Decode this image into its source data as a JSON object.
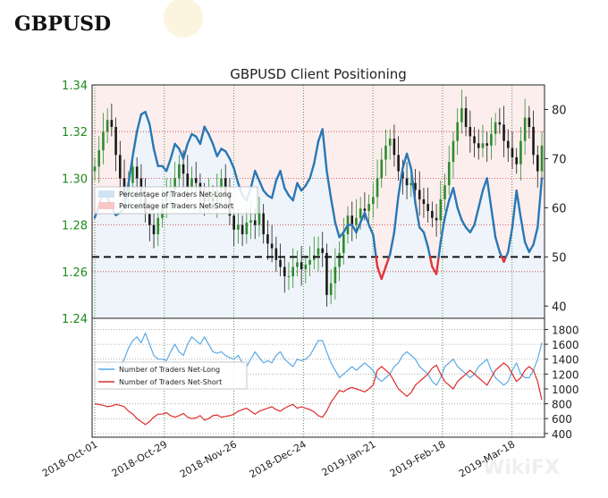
{
  "page_title": "GBPUSD",
  "watermark": "WikiFX",
  "colors": {
    "price_up": "#2e8b2e",
    "price_down": "#1a1a1a",
    "pct_long": "#2a77b4",
    "pct_short": "#e0353a",
    "num_long": "#5aa9e6",
    "num_short": "#dd2b2b",
    "band_long": "#eef4fa",
    "band_short": "#fdeeee",
    "axis_green": "#1f8a1f"
  },
  "chart_data": [
    {
      "type": "candlestick+line",
      "title": "GBPUSD Client Positioning",
      "x_start_date": "2018-10-01",
      "num_days": 181,
      "left_axis": {
        "ylim": [
          1.24,
          1.34
        ],
        "ticks": [
          "1.24",
          "1.26",
          "1.28",
          "1.30",
          "1.32",
          "1.34"
        ]
      },
      "right_axis": {
        "ylim": [
          37.5,
          85
        ],
        "ticks": [
          "40",
          "50",
          "60",
          "70",
          "80"
        ],
        "reference_line": 50
      },
      "price_close": [
        1.305,
        1.312,
        1.32,
        1.325,
        1.322,
        1.31,
        1.3,
        1.292,
        1.298,
        1.305,
        1.3,
        1.292,
        1.285,
        1.28,
        1.276,
        1.283,
        1.29,
        1.292,
        1.295,
        1.3,
        1.306,
        1.302,
        1.296,
        1.3,
        1.298,
        1.292,
        1.29,
        1.292,
        1.29,
        1.295,
        1.3,
        1.292,
        1.284,
        1.278,
        1.28,
        1.276,
        1.281,
        1.282,
        1.28,
        1.285,
        1.276,
        1.272,
        1.27,
        1.265,
        1.262,
        1.258,
        1.258,
        1.262,
        1.264,
        1.261,
        1.263,
        1.265,
        1.267,
        1.27,
        1.268,
        1.25,
        1.255,
        1.262,
        1.268,
        1.276,
        1.284,
        1.28,
        1.283,
        1.287,
        1.286,
        1.289,
        1.292,
        1.3,
        1.308,
        1.314,
        1.317,
        1.31,
        1.303,
        1.3,
        1.297,
        1.298,
        1.295,
        1.291,
        1.289,
        1.286,
        1.283,
        1.282,
        1.291,
        1.297,
        1.307,
        1.316,
        1.324,
        1.33,
        1.322,
        1.318,
        1.315,
        1.313,
        1.315,
        1.314,
        1.319,
        1.324,
        1.323,
        1.316,
        1.313,
        1.309,
        1.306,
        1.316,
        1.326,
        1.322,
        1.31,
        1.303,
        1.314
      ],
      "pct_long": [
        58.0,
        60.5,
        63.0,
        62.0,
        60.0,
        58.5,
        59.0,
        60.0,
        65.0,
        70.5,
        75.5,
        79.0,
        79.5,
        77.0,
        72.0,
        68.5,
        68.5,
        67.5,
        70.0,
        73.0,
        72.0,
        70.0,
        73.0,
        75.0,
        74.5,
        73.0,
        76.5,
        75.0,
        73.0,
        70.5,
        72.0,
        71.5,
        70.0,
        68.0,
        65.0,
        62.5,
        61.5,
        64.0,
        67.5,
        65.5,
        63.5,
        62.5,
        62.0,
        65.5,
        67.5,
        64.0,
        62.5,
        61.5,
        65.0,
        63.5,
        64.5,
        66.0,
        69.0,
        73.5,
        76.0,
        67.5,
        62.0,
        57.0,
        54.0,
        55.0,
        56.5,
        56.5,
        55.0,
        57.0,
        59.0,
        56.5,
        54.5,
        48.0,
        45.5,
        48.0,
        50.5,
        55.0,
        62.5,
        68.0,
        71.0,
        68.0,
        61.0,
        56.0,
        55.0,
        52.0,
        48.0,
        46.5,
        53.0,
        58.0,
        61.5,
        64.0,
        60.0,
        57.5,
        56.0,
        55.0,
        56.5,
        60.0,
        63.5,
        66.0,
        60.0,
        54.0,
        51.0,
        49.0,
        51.0,
        56.0,
        63.5,
        58.0,
        53.0,
        51.0,
        52.5,
        56.0,
        66.0
      ],
      "num_long": [
        1100,
        1200,
        1250,
        1350,
        1300,
        1250,
        1300,
        1400,
        1550,
        1650,
        1700,
        1620,
        1750,
        1600,
        1450,
        1400,
        1400,
        1380,
        1500,
        1600,
        1500,
        1450,
        1600,
        1700,
        1650,
        1600,
        1700,
        1600,
        1500,
        1480,
        1500,
        1450,
        1420,
        1400,
        1450,
        1350,
        1300,
        1400,
        1500,
        1420,
        1350,
        1380,
        1350,
        1450,
        1500,
        1400,
        1350,
        1300,
        1400,
        1380,
        1400,
        1450,
        1550,
        1650,
        1650,
        1500,
        1350,
        1250,
        1150,
        1200,
        1250,
        1300,
        1250,
        1300,
        1350,
        1300,
        1250,
        1150,
        1100,
        1150,
        1200,
        1300,
        1350,
        1450,
        1500,
        1450,
        1400,
        1300,
        1250,
        1200,
        1100,
        1050,
        1150,
        1300,
        1350,
        1400,
        1300,
        1250,
        1200,
        1150,
        1200,
        1300,
        1350,
        1400,
        1250,
        1150,
        1100,
        1050,
        1100,
        1250,
        1350,
        1200,
        1150,
        1150,
        1250,
        1400,
        1620
      ],
      "num_short": [
        800,
        790,
        780,
        760,
        770,
        790,
        780,
        760,
        700,
        660,
        600,
        560,
        520,
        560,
        620,
        660,
        660,
        680,
        640,
        620,
        640,
        670,
        620,
        600,
        610,
        640,
        580,
        600,
        640,
        650,
        620,
        630,
        640,
        660,
        700,
        720,
        740,
        700,
        660,
        700,
        720,
        740,
        760,
        720,
        700,
        740,
        770,
        790,
        740,
        760,
        740,
        720,
        690,
        640,
        620,
        700,
        820,
        900,
        980,
        960,
        1000,
        1020,
        1000,
        980,
        960,
        1000,
        1050,
        1250,
        1300,
        1250,
        1200,
        1100,
        1000,
        950,
        900,
        950,
        1050,
        1100,
        1150,
        1200,
        1280,
        1320,
        1200,
        1100,
        1050,
        1000,
        1100,
        1150,
        1200,
        1250,
        1200,
        1150,
        1100,
        1050,
        1150,
        1250,
        1300,
        1350,
        1300,
        1200,
        1100,
        1150,
        1250,
        1300,
        1250,
        1100,
        850
      ]
    },
    {
      "type": "line",
      "title": "",
      "ylim": [
        350,
        1950
      ],
      "yticks": [
        "400",
        "600",
        "800",
        "1000",
        "1200",
        "1400",
        "1600",
        "1800"
      ],
      "legend": [
        "Number of Traders Net-Long",
        "Number of Traders Net-Short"
      ]
    }
  ],
  "legend_top": [
    "Percentage of Traders Net-Long",
    "Percentage of Traders Net-Short"
  ],
  "x_ticks": [
    {
      "label": "2018-Oct-01",
      "day": 0
    },
    {
      "label": "2018-Oct-29",
      "day": 28
    },
    {
      "label": "2018-Nov-26",
      "day": 56
    },
    {
      "label": "2018-Dec-24",
      "day": 84
    },
    {
      "label": "2019-Jan-21",
      "day": 112
    },
    {
      "label": "2019-Feb-18",
      "day": 140
    },
    {
      "label": "2019-Mar-18",
      "day": 168
    }
  ]
}
